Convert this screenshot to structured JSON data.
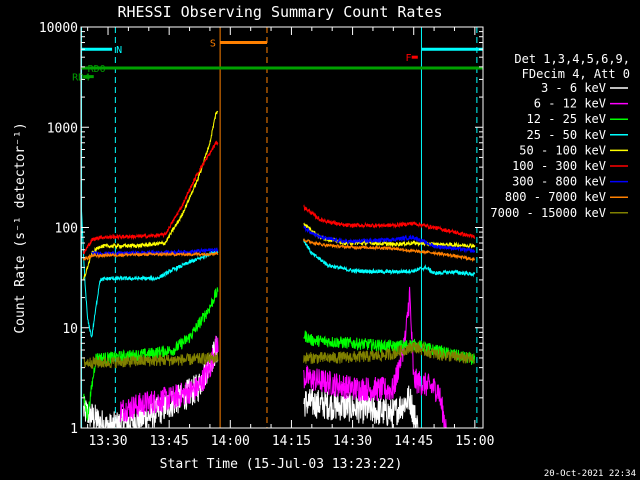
{
  "chart_data": {
    "type": "line",
    "title": "RHESSI Observing Summary Count Rates",
    "xlabel": "Start Time (15-Jul-03 13:23:22)",
    "ylabel": "Count Rate (s⁻¹ detector⁻¹)",
    "yscale": "log",
    "ylim": [
      1,
      10000
    ],
    "xlim_minutes": [
      23.37,
      122.0
    ],
    "x_units": "minutes after 13:00 UT",
    "x_ticks": [
      {
        "label": "13:30",
        "value": 30
      },
      {
        "label": "13:45",
        "value": 45
      },
      {
        "label": "14:00",
        "value": 60
      },
      {
        "label": "14:15",
        "value": 75
      },
      {
        "label": "14:30",
        "value": 90
      },
      {
        "label": "14:45",
        "value": 105
      },
      {
        "label": "15:00",
        "value": 120
      }
    ],
    "y_ticks": [
      {
        "label": "1",
        "value": 1
      },
      {
        "label": "10",
        "value": 10
      },
      {
        "label": "100",
        "value": 100
      },
      {
        "label": "1000",
        "value": 1000
      },
      {
        "label": "10000",
        "value": 10000
      }
    ],
    "legend_header": [
      "Det 1,3,4,5,6,9,",
      "FDecim 4, Att 0"
    ],
    "legend_position": "right",
    "data_gap_minutes": [
      57.0,
      77.0
    ],
    "series": [
      {
        "name": "3 - 6 keV",
        "color": "#ffffff",
        "noise": 0.3,
        "points": [
          [
            24,
            1.5
          ],
          [
            30,
            1.0
          ],
          [
            40,
            1.3
          ],
          [
            46,
            1.8
          ],
          [
            52,
            2.5
          ],
          [
            55,
            4.5
          ],
          [
            56.5,
            6.0
          ],
          [
            78,
            1.8
          ],
          [
            90,
            1.6
          ],
          [
            100,
            1.4
          ],
          [
            104,
            2.0
          ],
          [
            106,
            1.0
          ]
        ]
      },
      {
        "name": "6 - 12 keV",
        "color": "#ff00ff",
        "noise": 0.25,
        "points": [
          [
            33,
            1.5
          ],
          [
            40,
            1.8
          ],
          [
            46,
            2.0
          ],
          [
            52,
            2.5
          ],
          [
            55,
            4.0
          ],
          [
            56.5,
            6.5
          ],
          [
            78,
            3.2
          ],
          [
            90,
            2.5
          ],
          [
            100,
            2.4
          ],
          [
            103,
            8.0
          ],
          [
            104,
            22.0
          ],
          [
            105,
            3.0
          ],
          [
            111,
            2.4
          ],
          [
            113,
            1.0
          ]
        ]
      },
      {
        "name": "12 - 25 keV",
        "color": "#00ff00",
        "noise": 0.12,
        "points": [
          [
            24,
            2.0
          ],
          [
            25,
            1.3
          ],
          [
            27,
            5.0
          ],
          [
            30,
            5.0
          ],
          [
            40,
            5.5
          ],
          [
            46,
            6.0
          ],
          [
            50,
            8.0
          ],
          [
            53,
            12.0
          ],
          [
            55,
            16.0
          ],
          [
            56.5,
            22.0
          ],
          [
            78,
            8.5
          ],
          [
            80,
            7.5
          ],
          [
            90,
            7.0
          ],
          [
            100,
            6.5
          ],
          [
            105,
            6.8
          ],
          [
            110,
            6.0
          ],
          [
            120,
            4.8
          ]
        ]
      },
      {
        "name": "25 - 50 keV",
        "color": "#00ffff",
        "noise": 0.04,
        "points": [
          [
            23.5,
            140.0
          ],
          [
            24.3,
            30.0
          ],
          [
            25,
            12.0
          ],
          [
            26,
            8.0
          ],
          [
            28,
            30.0
          ],
          [
            30,
            31.0
          ],
          [
            38,
            31.0
          ],
          [
            42,
            31.0
          ],
          [
            46,
            38.0
          ],
          [
            50,
            45.0
          ],
          [
            53,
            50.0
          ],
          [
            55,
            55.0
          ],
          [
            56.5,
            58.0
          ],
          [
            78,
            75.0
          ],
          [
            80,
            55.0
          ],
          [
            84,
            42.0
          ],
          [
            90,
            37.0
          ],
          [
            100,
            36.0
          ],
          [
            105,
            37.0
          ],
          [
            108,
            40.0
          ],
          [
            110,
            35.0
          ],
          [
            115,
            36.0
          ],
          [
            120,
            34.0
          ]
        ]
      },
      {
        "name": "50 - 100 keV",
        "color": "#ffff00",
        "noise": 0.04,
        "points": [
          [
            24,
            30.0
          ],
          [
            26,
            55.0
          ],
          [
            28,
            65.0
          ],
          [
            38,
            66.0
          ],
          [
            44,
            70.0
          ],
          [
            48,
            130.0
          ],
          [
            52,
            300.0
          ],
          [
            55,
            700.0
          ],
          [
            56.5,
            1400.0
          ],
          [
            78,
            110.0
          ],
          [
            82,
            80.0
          ],
          [
            88,
            70.0
          ],
          [
            95,
            70.0
          ],
          [
            100,
            68.0
          ],
          [
            105,
            70.0
          ],
          [
            110,
            68.0
          ],
          [
            115,
            67.0
          ],
          [
            120,
            66.0
          ]
        ]
      },
      {
        "name": "100 - 300 keV",
        "color": "#ff0000",
        "noise": 0.04,
        "points": [
          [
            24,
            55.0
          ],
          [
            26,
            75.0
          ],
          [
            28,
            80.0
          ],
          [
            40,
            82.0
          ],
          [
            44,
            85.0
          ],
          [
            48,
            160.0
          ],
          [
            52,
            350.0
          ],
          [
            55,
            550.0
          ],
          [
            56.5,
            700.0
          ],
          [
            78,
            160.0
          ],
          [
            82,
            120.0
          ],
          [
            88,
            105.0
          ],
          [
            95,
            105.0
          ],
          [
            100,
            105.0
          ],
          [
            105,
            110.0
          ],
          [
            110,
            100.0
          ],
          [
            115,
            90.0
          ],
          [
            120,
            80.0
          ]
        ]
      },
      {
        "name": "300 - 800 keV",
        "color": "#0000ff",
        "noise": 0.04,
        "points": [
          [
            26,
            55.0
          ],
          [
            30,
            55.0
          ],
          [
            40,
            56.0
          ],
          [
            50,
            57.0
          ],
          [
            56.5,
            60.0
          ],
          [
            78,
            100.0
          ],
          [
            82,
            80.0
          ],
          [
            88,
            72.0
          ],
          [
            95,
            74.0
          ],
          [
            100,
            76.0
          ],
          [
            105,
            80.0
          ],
          [
            110,
            65.0
          ],
          [
            115,
            62.0
          ],
          [
            120,
            58.0
          ]
        ]
      },
      {
        "name": "800 - 7000 keV",
        "color": "#ff8000",
        "noise": 0.03,
        "points": [
          [
            24,
            48.0
          ],
          [
            26,
            52.0
          ],
          [
            30,
            53.0
          ],
          [
            40,
            54.0
          ],
          [
            50,
            54.0
          ],
          [
            56.5,
            55.0
          ],
          [
            78,
            75.0
          ],
          [
            82,
            68.0
          ],
          [
            88,
            64.0
          ],
          [
            95,
            63.0
          ],
          [
            100,
            62.0
          ],
          [
            105,
            58.0
          ],
          [
            110,
            56.0
          ],
          [
            115,
            52.0
          ],
          [
            120,
            48.0
          ]
        ]
      },
      {
        "name": "7000 - 15000 keV",
        "color": "#808000",
        "noise": 0.12,
        "points": [
          [
            24,
            4.5
          ],
          [
            30,
            4.5
          ],
          [
            40,
            4.7
          ],
          [
            50,
            4.8
          ],
          [
            56.5,
            5.0
          ],
          [
            78,
            5.0
          ],
          [
            85,
            5.0
          ],
          [
            95,
            5.2
          ],
          [
            100,
            5.5
          ],
          [
            105,
            6.5
          ],
          [
            110,
            5.5
          ],
          [
            120,
            4.8
          ]
        ]
      }
    ],
    "flag_markers": [
      {
        "label": "N",
        "color": "#00ffff",
        "value": 6000,
        "segments": [
          [
            23.4,
            31.0
          ],
          [
            107.0,
            122.0
          ]
        ],
        "style": "solid",
        "label_at": 32.0
      },
      {
        "label": "S",
        "color": "#ff8000",
        "value": 7000,
        "segments": [
          [
            57.5,
            69.0
          ]
        ],
        "style": "solid",
        "label_at": 55.0
      },
      {
        "label": "F",
        "color": "#ff0000",
        "value": 5000,
        "segments": [
          [
            104.5,
            106.0
          ]
        ],
        "style": "solid",
        "label_at": 103.0
      },
      {
        "label": "RD0",
        "color": "#00a000",
        "value": 3900,
        "segments": [
          [
            23.4,
            122.0
          ]
        ],
        "style": "solid",
        "label_at": 25.0
      },
      {
        "label": "RD4",
        "color": "#00a000",
        "value": 3200,
        "segments": [
          [
            24.0,
            26.5
          ]
        ],
        "style": "solid",
        "label_at": 21.2
      }
    ],
    "vertical_markers": [
      {
        "x": 23.5,
        "color": "#00ffff",
        "style": "solid"
      },
      {
        "x": 31.8,
        "color": "#00ffff",
        "style": "dashed"
      },
      {
        "x": 57.5,
        "color": "#ff8000",
        "style": "solid"
      },
      {
        "x": 69.0,
        "color": "#ff8000",
        "style": "dashed"
      },
      {
        "x": 106.9,
        "color": "#00ffff",
        "style": "solid"
      },
      {
        "x": 120.5,
        "color": "#00ffff",
        "style": "dashed"
      }
    ],
    "timestamp": "20-Oct-2021 22:34"
  }
}
